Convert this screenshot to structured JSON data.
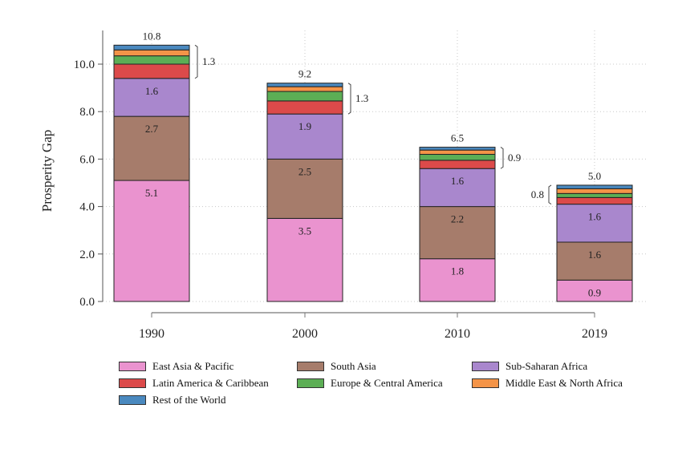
{
  "chart_data": {
    "type": "bar",
    "stacked": true,
    "ylabel": "Prosperity Gap",
    "xlabel": "",
    "ylim": [
      0,
      11
    ],
    "yticks": [
      "0.0",
      "2.0",
      "4.0",
      "6.0",
      "8.0",
      "10.0"
    ],
    "categories": [
      "1990",
      "2000",
      "2010",
      "2019"
    ],
    "series": [
      {
        "name": "East Asia & Pacific",
        "color": "#ea93cf",
        "values": [
          5.1,
          3.5,
          1.8,
          0.9
        ]
      },
      {
        "name": "South Asia",
        "color": "#a67c6b",
        "values": [
          2.7,
          2.5,
          2.2,
          1.6
        ]
      },
      {
        "name": "Sub-Saharan Africa",
        "color": "#a987cd",
        "values": [
          1.6,
          1.9,
          1.6,
          1.6
        ]
      },
      {
        "name": "Latin America & Caribbean",
        "color": "#dc4a4a",
        "values": [
          0.6,
          0.55,
          0.35,
          0.28
        ]
      },
      {
        "name": "Europe & Central America",
        "color": "#5cae55",
        "values": [
          0.35,
          0.4,
          0.25,
          0.17
        ]
      },
      {
        "name": "Middle East & North Africa",
        "color": "#f49448",
        "values": [
          0.25,
          0.2,
          0.18,
          0.2
        ]
      },
      {
        "name": "Rest of the World",
        "color": "#4a89bf",
        "values": [
          0.2,
          0.15,
          0.12,
          0.15
        ]
      }
    ],
    "segment_labels": [
      [
        "5.1",
        "2.7",
        "1.6"
      ],
      [
        "3.5",
        "2.5",
        "1.9"
      ],
      [
        "1.8",
        "2.2",
        "1.6"
      ],
      [
        "0.9",
        "1.6",
        "1.6"
      ]
    ],
    "totals": [
      "10.8",
      "9.2",
      "6.5",
      "5.0"
    ],
    "bracket_labels": [
      "1.3",
      "1.3",
      "0.9",
      "0.8"
    ],
    "bracket_side": [
      "right",
      "right",
      "right",
      "left"
    ],
    "grid": true,
    "legend_position": "bottom"
  }
}
